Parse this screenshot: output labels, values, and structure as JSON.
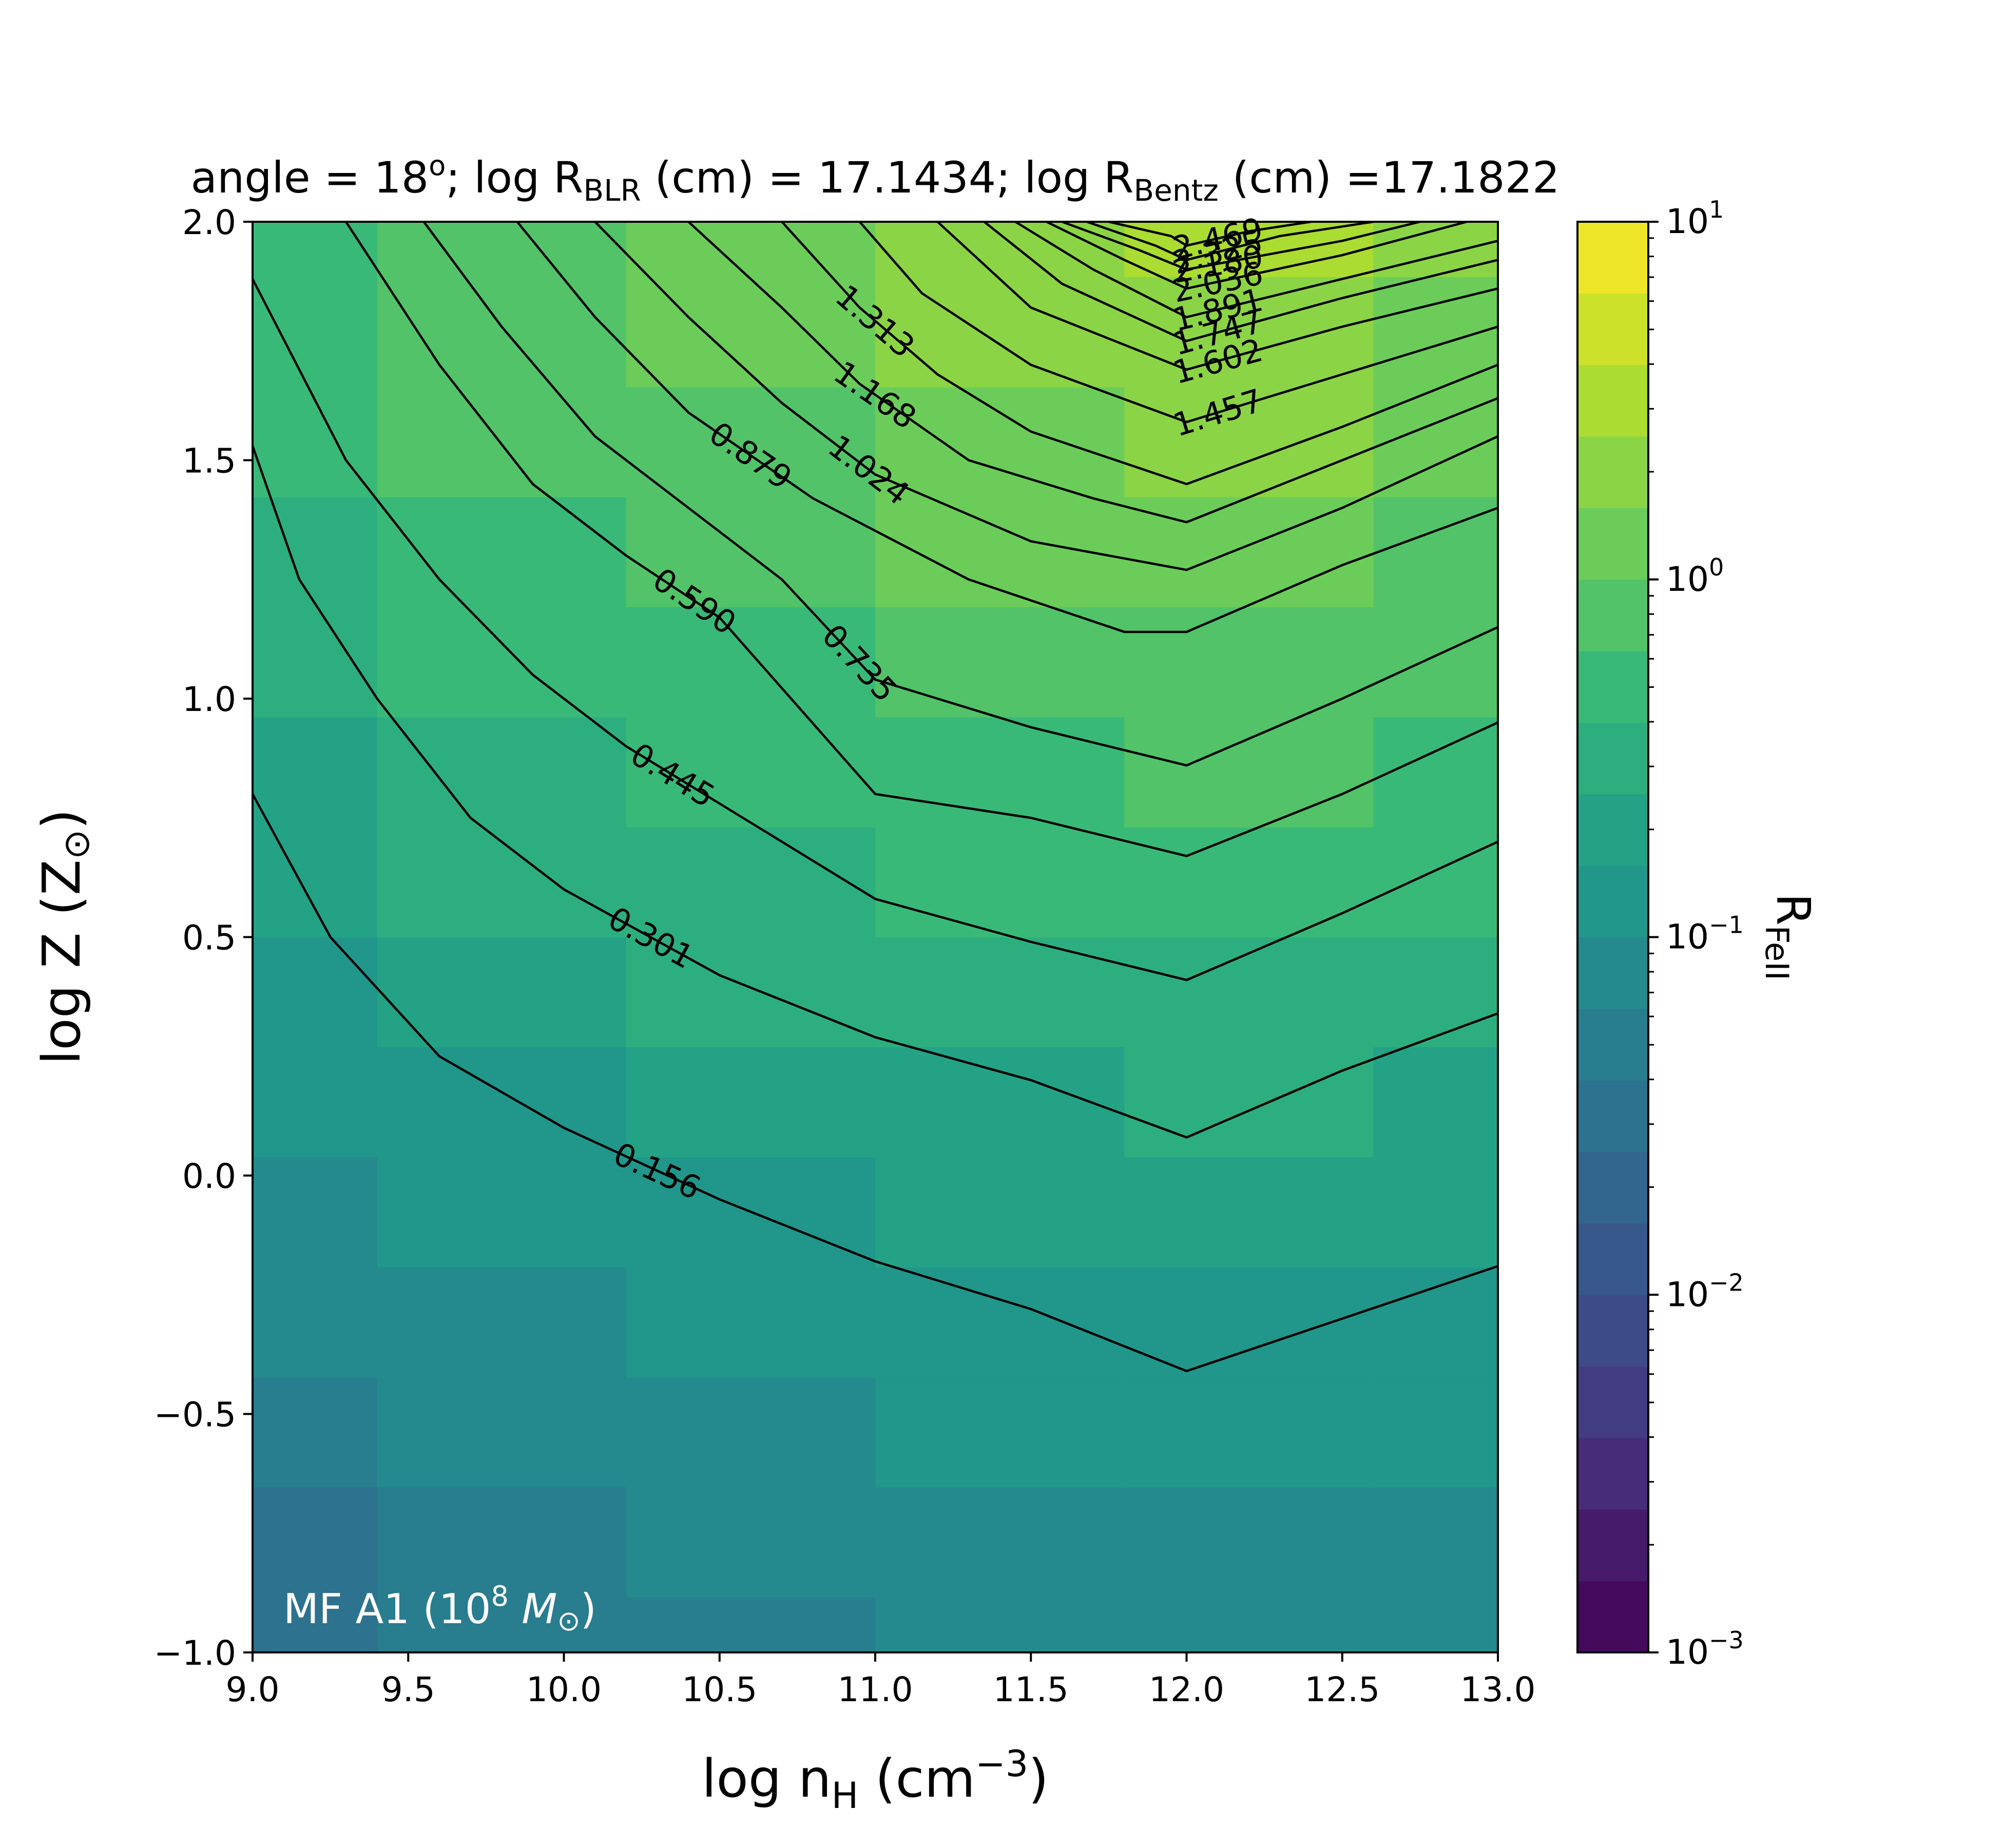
{
  "chart_data": {
    "type": "heatmap",
    "title": {
      "part1": "angle = 18",
      "deg": "o",
      "part2": "; log R",
      "sub1": "BLR",
      "part3": " (cm) = 17.1434; log R",
      "sub2": "Bentz",
      "part4": " (cm) =17.1822"
    },
    "xlabel": {
      "main": "log n",
      "sub": "H",
      "unit": " (cm",
      "sup": "−3",
      "close": ")"
    },
    "ylabel": {
      "main": "log Z (Z",
      "sym": "⊙",
      "close": ")"
    },
    "colorbar_label": {
      "main": "R",
      "sub": "FeII"
    },
    "annotation": {
      "main": "MF A1 (10",
      "sup": "8",
      "mid": " M",
      "sym": "⊙",
      "close": ")"
    },
    "xlim": [
      9.0,
      13.0
    ],
    "ylim": [
      -1.0,
      2.0
    ],
    "x_ticks": [
      "9.0",
      "9.5",
      "10.0",
      "10.5",
      "11.0",
      "11.5",
      "12.0",
      "12.5",
      "13.0"
    ],
    "y_ticks": [
      "−1.0",
      "−0.5",
      "0.0",
      "0.5",
      "1.0",
      "1.5",
      "2.0"
    ],
    "cbar_ticks": [
      {
        "base": "10",
        "exp": "−3"
      },
      {
        "base": "10",
        "exp": "−2"
      },
      {
        "base": "10",
        "exp": "−1"
      },
      {
        "base": "10",
        "exp": "0"
      },
      {
        "base": "10",
        "exp": "1"
      }
    ],
    "cbar_range_log10": [
      -3,
      1
    ],
    "colormap": "viridis",
    "x_centers": [
      9.0,
      9.8,
      10.6,
      11.4,
      12.2,
      13.0
    ],
    "y_centers": [
      -1.0,
      -0.769,
      -0.538,
      -0.308,
      -0.077,
      0.154,
      0.385,
      0.615,
      0.846,
      1.077,
      1.308,
      1.538,
      1.769,
      2.0
    ],
    "z_values_log10": [
      [
        -1.55,
        -1.4,
        -1.25,
        -1.15,
        -1.12,
        -1.12
      ],
      [
        -1.45,
        -1.3,
        -1.18,
        -1.05,
        -1.03,
        -1.03
      ],
      [
        -1.35,
        -1.2,
        -1.08,
        -0.97,
        -0.95,
        -0.95
      ],
      [
        -1.2,
        -1.08,
        -0.98,
        -0.87,
        -0.84,
        -0.84
      ],
      [
        -1.08,
        -0.98,
        -0.88,
        -0.77,
        -0.72,
        -0.74
      ],
      [
        -0.95,
        -0.85,
        -0.72,
        -0.62,
        -0.57,
        -0.62
      ],
      [
        -0.85,
        -0.72,
        -0.6,
        -0.47,
        -0.42,
        -0.5
      ],
      [
        -0.75,
        -0.6,
        -0.47,
        -0.34,
        -0.3,
        -0.39
      ],
      [
        -0.65,
        -0.5,
        -0.37,
        -0.22,
        -0.18,
        -0.29
      ],
      [
        -0.55,
        -0.4,
        -0.25,
        -0.1,
        -0.05,
        -0.19
      ],
      [
        -0.48,
        -0.3,
        -0.13,
        0.02,
        0.07,
        -0.09
      ],
      [
        -0.4,
        -0.2,
        -0.01,
        0.12,
        0.2,
        0.0
      ],
      [
        -0.32,
        -0.1,
        0.1,
        0.25,
        0.32,
        0.1
      ],
      [
        -0.25,
        -0.05,
        0.15,
        0.35,
        0.4,
        0.2
      ]
    ],
    "contours": [
      {
        "level": "0.156",
        "x": [
          9.0,
          9.25,
          9.6,
          10.0,
          10.5,
          11.0,
          11.5,
          12.0,
          12.5,
          13.0
        ],
        "y": [
          0.8,
          0.5,
          0.25,
          0.1,
          -0.05,
          -0.18,
          -0.28,
          -0.41,
          -0.3,
          -0.19
        ],
        "label_x": 10.3
      },
      {
        "level": "0.301",
        "x": [
          9.0,
          9.15,
          9.4,
          9.7,
          10.0,
          10.5,
          11.0,
          11.5,
          12.0,
          12.5,
          13.0
        ],
        "y": [
          1.53,
          1.25,
          1.0,
          0.75,
          0.6,
          0.42,
          0.29,
          0.2,
          0.08,
          0.22,
          0.34
        ],
        "label_x": 10.28
      },
      {
        "level": "0.445",
        "x": [
          9.0,
          9.3,
          9.6,
          9.9,
          10.2,
          10.5,
          11.0,
          11.5,
          12.0,
          12.5,
          13.0
        ],
        "y": [
          1.88,
          1.5,
          1.25,
          1.05,
          0.9,
          0.78,
          0.58,
          0.49,
          0.41,
          0.55,
          0.7
        ],
        "label_x": 10.35
      },
      {
        "level": "0.590",
        "x": [
          9.3,
          9.6,
          9.9,
          10.2,
          10.5,
          11.0,
          11.5,
          12.0,
          12.5,
          13.0
        ],
        "y": [
          2.0,
          1.7,
          1.45,
          1.3,
          1.17,
          0.8,
          0.75,
          0.67,
          0.8,
          0.95
        ],
        "label_x": 10.42
      },
      {
        "level": "0.735",
        "x": [
          9.55,
          9.8,
          10.1,
          10.4,
          10.7,
          11.0,
          11.5,
          12.0,
          12.5,
          13.0
        ],
        "y": [
          2.0,
          1.78,
          1.55,
          1.4,
          1.25,
          1.04,
          0.94,
          0.86,
          1.0,
          1.15
        ],
        "label_x": 10.95
      },
      {
        "level": "0.879",
        "x": [
          9.85,
          10.1,
          10.4,
          10.8,
          11.3,
          11.8,
          12.0,
          12.5,
          13.0
        ],
        "y": [
          2.0,
          1.8,
          1.6,
          1.42,
          1.25,
          1.14,
          1.14,
          1.28,
          1.4
        ],
        "label_x": 10.6
      },
      {
        "level": "1.024",
        "x": [
          10.1,
          10.4,
          10.7,
          11.0,
          11.5,
          12.0,
          12.5,
          13.0
        ],
        "y": [
          2.0,
          1.8,
          1.62,
          1.47,
          1.33,
          1.27,
          1.4,
          1.55
        ],
        "label_x": 10.98
      },
      {
        "level": "1.168",
        "x": [
          10.4,
          10.7,
          10.95,
          11.3,
          11.7,
          12.0,
          12.5,
          13.0
        ],
        "y": [
          2.0,
          1.82,
          1.66,
          1.5,
          1.42,
          1.37,
          1.5,
          1.63
        ],
        "label_x": 11.0
      },
      {
        "level": "1.313",
        "x": [
          10.7,
          10.95,
          11.2,
          11.5,
          12.0,
          12.5,
          13.0
        ],
        "y": [
          2.0,
          1.82,
          1.68,
          1.56,
          1.45,
          1.57,
          1.7
        ],
        "label_x": 11.0
      },
      {
        "level": "1.457",
        "x": [
          10.95,
          11.15,
          11.5,
          12.0,
          12.5,
          13.0
        ],
        "y": [
          2.0,
          1.85,
          1.7,
          1.58,
          1.68,
          1.78
        ],
        "label_x": 12.1
      },
      {
        "level": "1.602",
        "x": [
          11.2,
          11.5,
          12.0,
          12.5,
          13.0
        ],
        "y": [
          2.0,
          1.82,
          1.69,
          1.78,
          1.86
        ],
        "label_x": 12.1
      },
      {
        "level": "1.747",
        "x": [
          11.35,
          11.6,
          12.0,
          12.5,
          13.0
        ],
        "y": [
          2.0,
          1.87,
          1.75,
          1.84,
          1.92
        ],
        "label_x": 12.1
      },
      {
        "level": "1.891",
        "x": [
          11.45,
          11.7,
          12.0,
          12.5,
          13.0
        ],
        "y": [
          2.0,
          1.9,
          1.8,
          1.88,
          1.96
        ],
        "label_x": 12.1
      },
      {
        "level": "2.036",
        "x": [
          11.55,
          11.8,
          12.0,
          12.5,
          12.9
        ],
        "y": [
          2.0,
          1.92,
          1.86,
          1.93,
          2.0
        ],
        "label_x": 12.1
      },
      {
        "level": "2.180",
        "x": [
          11.6,
          11.85,
          12.0,
          12.5,
          12.75
        ],
        "y": [
          2.0,
          1.94,
          1.9,
          1.96,
          2.0
        ],
        "label_x": 12.1
      },
      {
        "level": "2.325",
        "x": [
          11.68,
          11.9,
          12.0,
          12.3,
          12.6
        ],
        "y": [
          2.0,
          1.95,
          1.92,
          1.97,
          2.0
        ],
        "label_x": 12.1
      },
      {
        "level": "2.469",
        "x": [
          11.75,
          11.95,
          12.0,
          12.2,
          12.4
        ],
        "y": [
          2.0,
          1.97,
          1.95,
          1.98,
          2.0
        ],
        "label_x": 12.1
      }
    ]
  }
}
